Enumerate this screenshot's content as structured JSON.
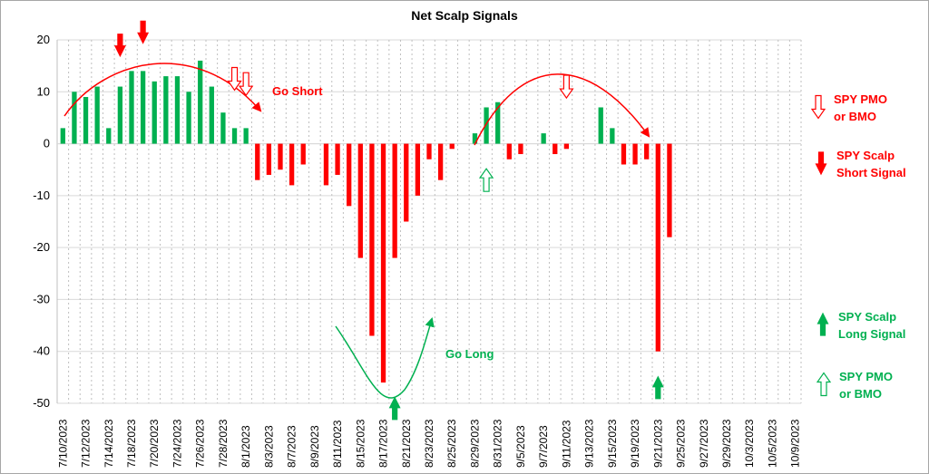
{
  "chart_data": {
    "type": "bar",
    "title": "Net Scalp Signals",
    "xlabel": "",
    "ylabel": "",
    "ylim": [
      -50,
      20
    ],
    "yticks": [
      20,
      10,
      0,
      -10,
      -20,
      -30,
      -40,
      -50
    ],
    "grid": true,
    "positive_color": "#00b050",
    "negative_color": "#ff0000",
    "slots": [
      "7/10/2023",
      "7/11/2023",
      "7/12/2023",
      "7/13/2023",
      "7/14/2023",
      "7/17/2023",
      "7/18/2023",
      "7/19/2023",
      "7/20/2023",
      "7/21/2023",
      "7/24/2023",
      "7/25/2023",
      "7/26/2023",
      "7/27/2023",
      "7/28/2023",
      "7/31/2023",
      "8/1/2023",
      "8/2/2023",
      "8/3/2023",
      "8/4/2023",
      "8/7/2023",
      "8/8/2023",
      "8/9/2023",
      "8/10/2023",
      "8/11/2023",
      "8/14/2023",
      "8/15/2023",
      "8/16/2023",
      "8/17/2023",
      "8/18/2023",
      "8/21/2023",
      "8/22/2023",
      "8/23/2023",
      "8/24/2023",
      "8/25/2023",
      "8/28/2023",
      "8/29/2023",
      "8/30/2023",
      "8/31/2023",
      "9/1/2023",
      "9/5/2023",
      "9/6/2023",
      "9/7/2023",
      "9/8/2023",
      "9/11/2023",
      "9/12/2023",
      "9/13/2023",
      "9/14/2023",
      "9/15/2023",
      "9/18/2023",
      "9/19/2023",
      "9/20/2023",
      "9/21/2023",
      "9/22/2023",
      "9/25/2023",
      "9/26/2023",
      "9/27/2023",
      "9/28/2023",
      "9/29/2023",
      "10/2/2023",
      "10/3/2023",
      "10/4/2023",
      "10/5/2023",
      "10/6/2023",
      "10/9/2023"
    ],
    "tick_labels": [
      "7/10/2023",
      "7/12/2023",
      "7/14/2023",
      "7/18/2023",
      "7/20/2023",
      "7/24/2023",
      "7/26/2023",
      "7/28/2023",
      "8/1/2023",
      "8/3/2023",
      "8/7/2023",
      "8/9/2023",
      "8/11/2023",
      "8/15/2023",
      "8/17/2023",
      "8/21/2023",
      "8/23/2023",
      "8/25/2023",
      "8/29/2023",
      "8/31/2023",
      "9/5/2023",
      "9/7/2023",
      "9/11/2023",
      "9/13/2023",
      "9/15/2023",
      "9/19/2023",
      "9/21/2023",
      "9/25/2023",
      "9/27/2023",
      "9/29/2023",
      "10/3/2023",
      "10/5/2023",
      "10/9/2023"
    ],
    "values": [
      3,
      10,
      9,
      11,
      3,
      11,
      14,
      14,
      12,
      13,
      13,
      10,
      16,
      11,
      6,
      3,
      3,
      -7,
      -6,
      -5,
      -8,
      -4,
      0,
      -8,
      -6,
      -12,
      -22,
      -37,
      -46,
      -22,
      -15,
      -10,
      -3,
      -7,
      -1,
      0,
      2,
      7,
      8,
      -3,
      -2,
      0,
      2,
      -2,
      -1,
      0,
      0,
      7,
      3,
      -4,
      -4,
      -3,
      -40,
      -18,
      null,
      null,
      null,
      null,
      null,
      null,
      null,
      null,
      null,
      null,
      null
    ],
    "annotations": [
      {
        "text": "Go Short",
        "color": "#ff0000"
      },
      {
        "text": "Go Long",
        "color": "#00b050"
      }
    ],
    "signal_markers": [
      {
        "kind": "short-filled",
        "slot": "7/17/2023",
        "y": 19
      },
      {
        "kind": "short-filled",
        "slot": "7/19/2023",
        "y": 21.5
      },
      {
        "kind": "short-hollow",
        "slot": "7/31/2023",
        "y": 12.5
      },
      {
        "kind": "short-hollow",
        "slot": "8/1/2023",
        "y": 11.5
      },
      {
        "kind": "long-filled",
        "slot": "8/18/2023",
        "y": -51
      },
      {
        "kind": "long-hollow",
        "slot": "8/30/2023",
        "y": -7
      },
      {
        "kind": "short-hollow",
        "slot": "9/11/2023",
        "y": 11
      },
      {
        "kind": "long-filled",
        "slot": "9/21/2023",
        "y": -47
      }
    ]
  },
  "legend": [
    {
      "kind": "short-hollow",
      "lines": [
        "SPY PMO",
        "or BMO"
      ],
      "color": "#ff0000"
    },
    {
      "kind": "short-filled",
      "lines": [
        "SPY Scalp",
        "Short Signal"
      ],
      "color": "#ff0000"
    },
    {
      "kind": "long-filled",
      "lines": [
        "SPY Scalp",
        "Long Signal"
      ],
      "color": "#00b050"
    },
    {
      "kind": "long-hollow",
      "lines": [
        "SPY PMO",
        "or BMO"
      ],
      "color": "#00b050"
    }
  ]
}
